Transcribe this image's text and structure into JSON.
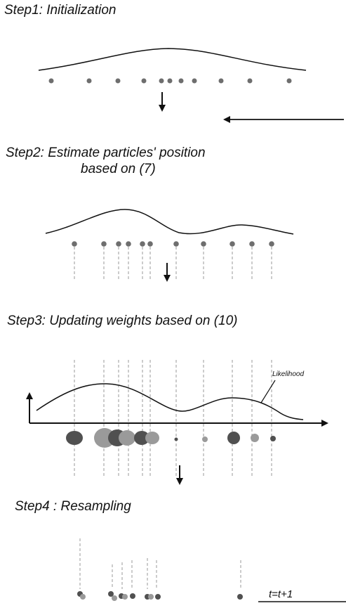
{
  "steps": {
    "step1": "Step1: Initialization",
    "step2_line1": "Step2: Estimate particles' position",
    "step2_line2": "based on (7)",
    "step3": "Step3: Updating weights based on (10)",
    "step4": "Step4 : Resampling"
  },
  "labels": {
    "likelihood": "Likelihood",
    "time_update": "t=t+1"
  },
  "colors": {
    "particle": "#6e6e6e",
    "curve": "#111111",
    "dashed_line": "#9a9a9a",
    "weight_dark": "#505050",
    "weight_light": "#9a9a9a"
  },
  "icons": [
    "down-arrow-icon",
    "feedback-arrow-icon",
    "axis-arrow-icon"
  ]
}
